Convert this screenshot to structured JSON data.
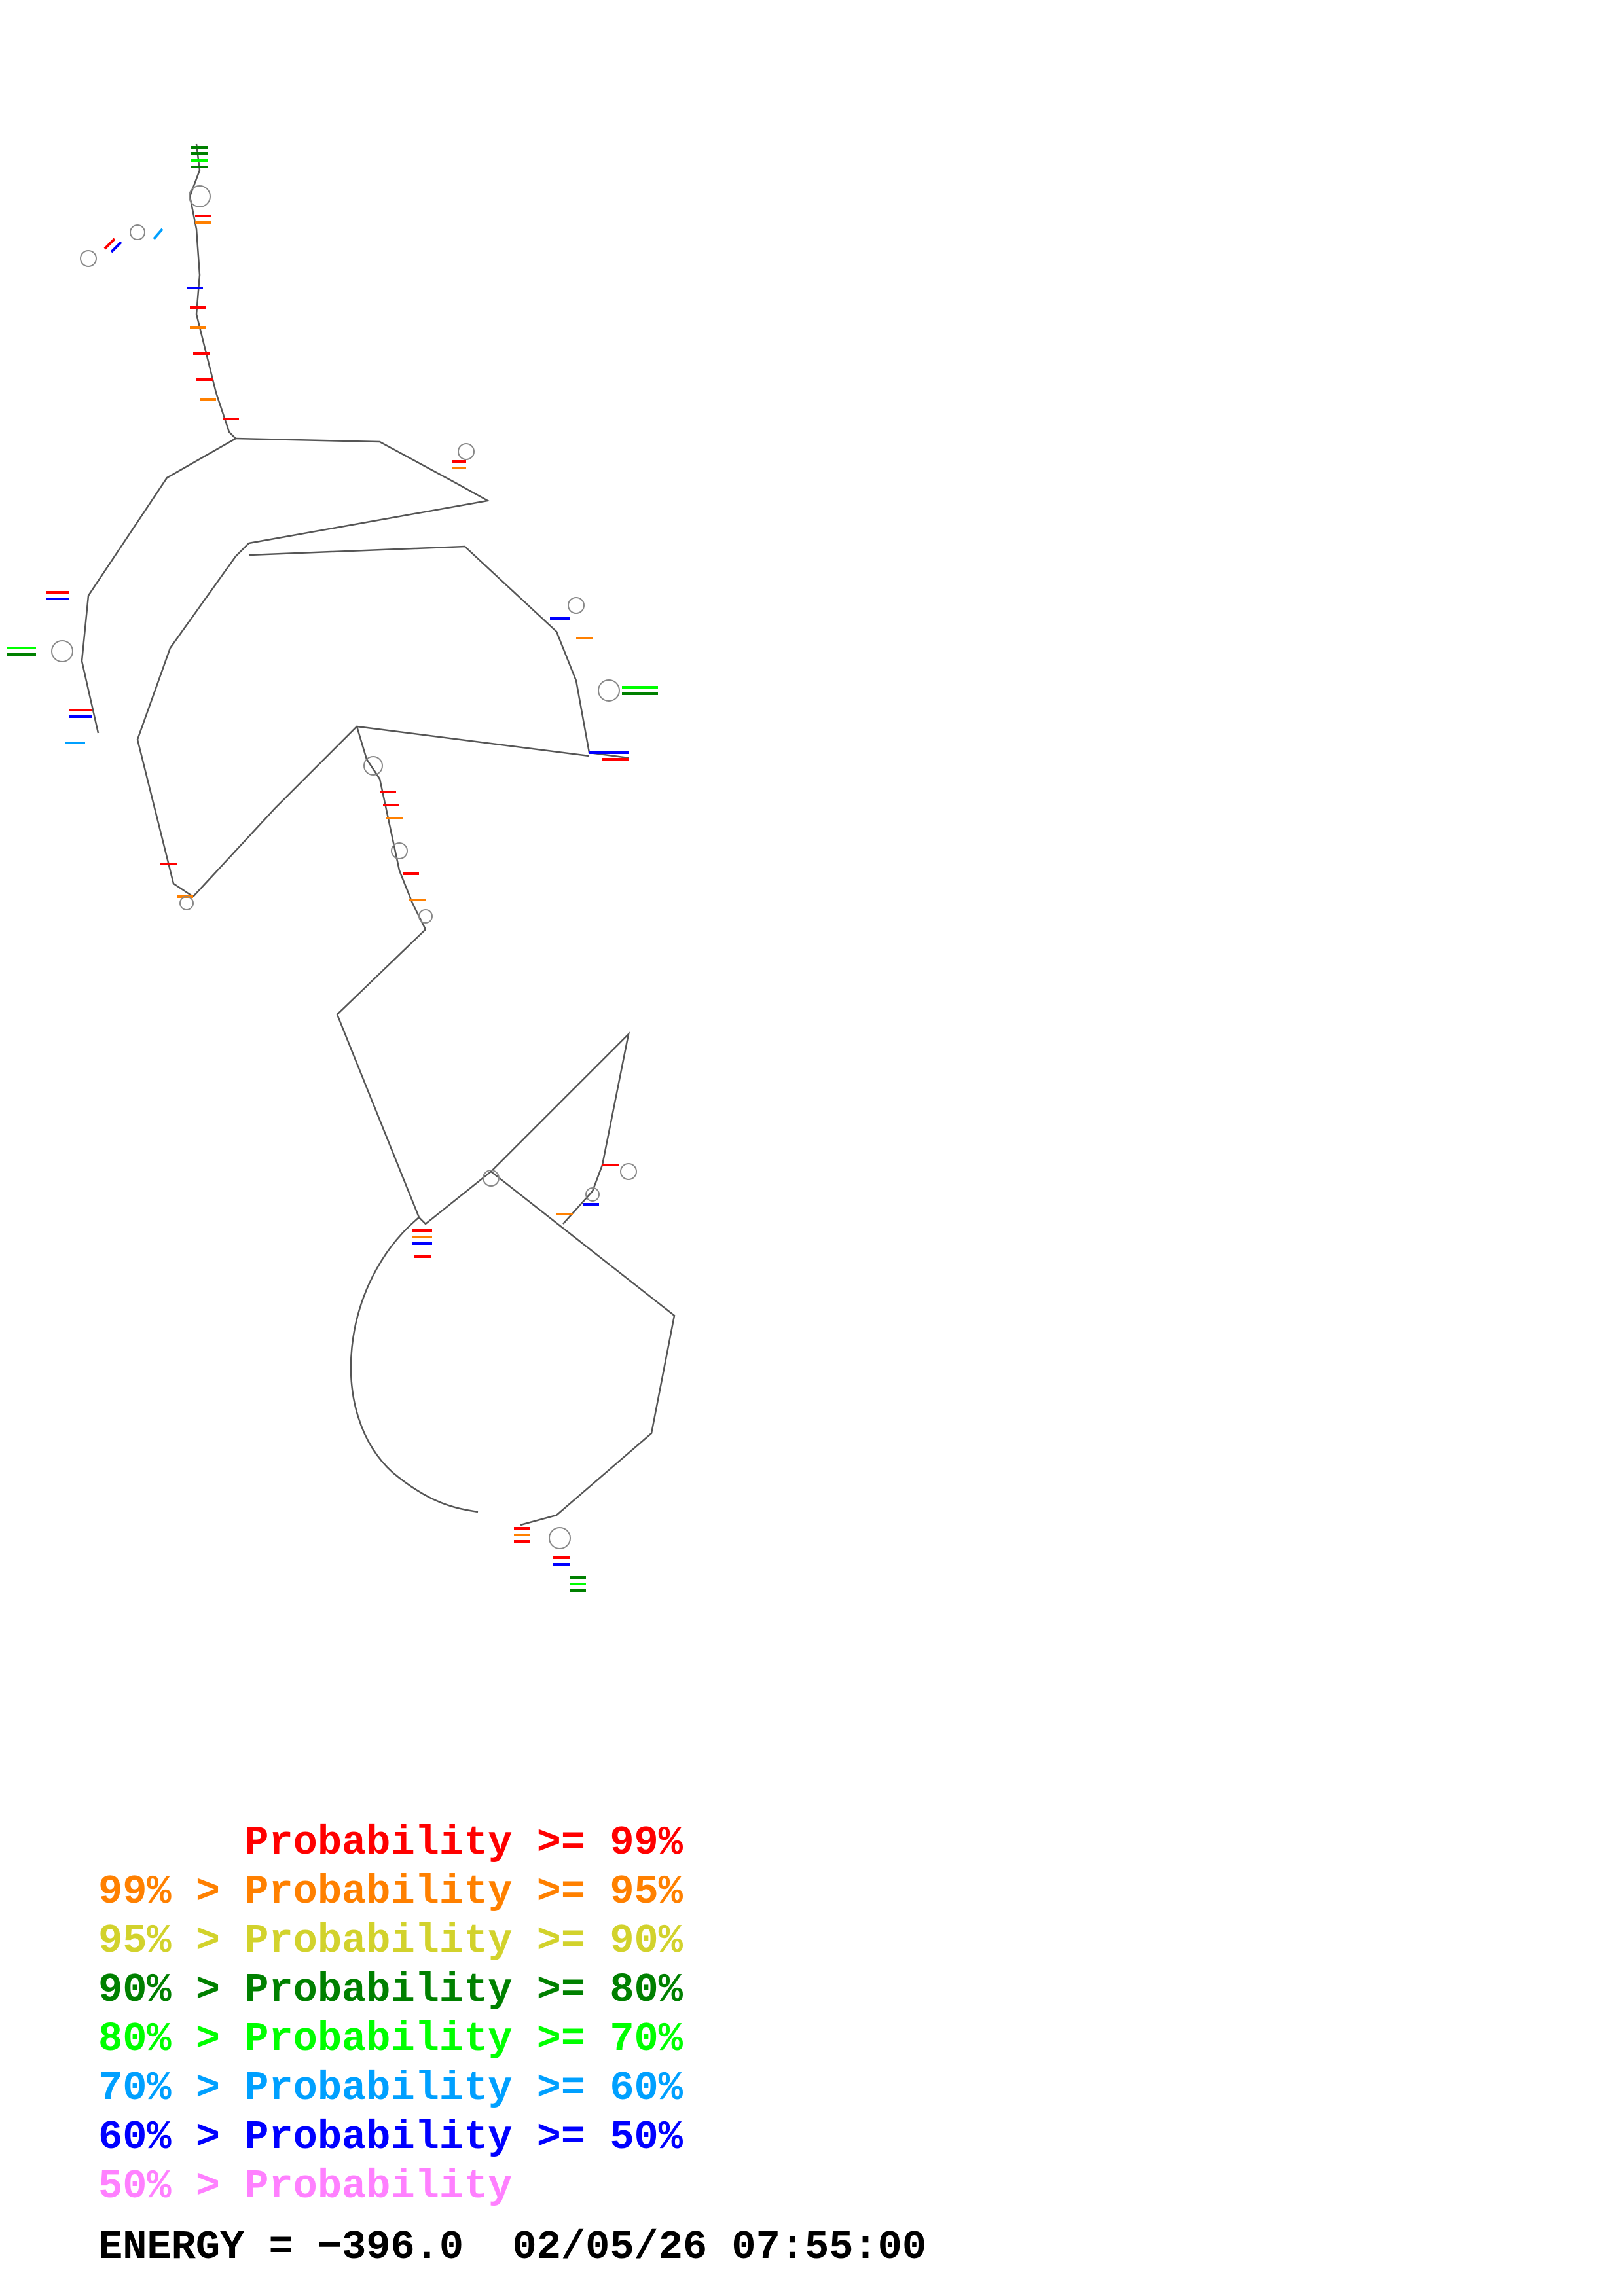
{
  "legend": {
    "rows": [
      {
        "text": "      Probability >= 99%",
        "color": "#ff0000"
      },
      {
        "text": "99% > Probability >= 95%",
        "color": "#ff8000"
      },
      {
        "text": "95% > Probability >= 90%",
        "color": "#d2d22c"
      },
      {
        "text": "90% > Probability >= 80%",
        "color": "#008000"
      },
      {
        "text": "80% > Probability >= 70%",
        "color": "#00ff00"
      },
      {
        "text": "70% > Probability >= 60%",
        "color": "#00a0ff"
      },
      {
        "text": "60% > Probability >= 50%",
        "color": "#0000ff"
      },
      {
        "text": "50% > Probability",
        "color": "#ff80ff"
      }
    ]
  },
  "footer": {
    "energy_label": "ENERGY = ",
    "energy_value": "−396.0",
    "timestamp": "02/05/26 07:55:00"
  },
  "diagram": {
    "backbone_color": "#555555"
  }
}
